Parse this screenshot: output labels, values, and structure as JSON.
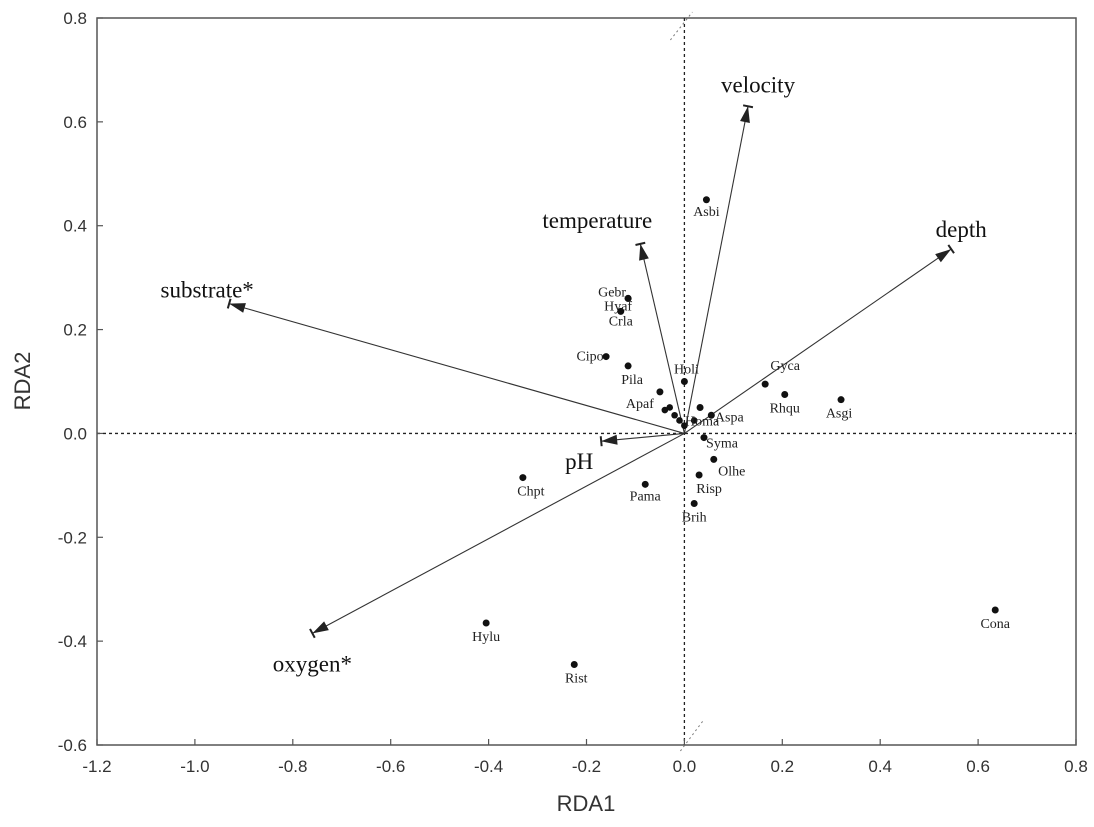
{
  "chart_data": {
    "type": "scatter",
    "title": "",
    "xlabel": "RDA1",
    "ylabel": "RDA2",
    "xlim": [
      -1.2,
      0.8
    ],
    "ylim": [
      -0.6,
      0.8
    ],
    "x_ticks": [
      "-1.2",
      "-1.0",
      "-0.8",
      "-0.6",
      "-0.4",
      "-0.2",
      "0.0",
      "0.2",
      "0.4",
      "0.6",
      "0.8"
    ],
    "y_ticks": [
      "0.8",
      "0.6",
      "0.4",
      "0.2",
      "0.0",
      "-0.2",
      "-0.4",
      "-0.6"
    ],
    "x_tick_values": [
      -1.2,
      -1.0,
      -0.8,
      -0.6,
      -0.4,
      -0.2,
      0.0,
      0.2,
      0.4,
      0.6,
      0.8
    ],
    "y_tick_values": [
      0.8,
      0.6,
      0.4,
      0.2,
      0.0,
      -0.2,
      -0.4,
      -0.6
    ],
    "grid": false,
    "legend": "none",
    "species": [
      {
        "name": "Asbi",
        "x": 0.045,
        "y": 0.45
      },
      {
        "name": "Hyaf",
        "x": -0.115,
        "y": 0.26
      },
      {
        "name": "Gebr",
        "x": -0.115,
        "y": 0.26
      },
      {
        "name": "Crla",
        "x": -0.13,
        "y": 0.235
      },
      {
        "name": "Cipo",
        "x": -0.16,
        "y": 0.148
      },
      {
        "name": "Pila",
        "x": -0.115,
        "y": 0.13
      },
      {
        "name": "Holi",
        "x": 0.0,
        "y": 0.1
      },
      {
        "name": "Apaf",
        "x": -0.05,
        "y": 0.08
      },
      {
        "name": "Homa",
        "x": 0.032,
        "y": 0.05
      },
      {
        "name": "Gyca",
        "x": 0.165,
        "y": 0.095
      },
      {
        "name": "Rhqu",
        "x": 0.205,
        "y": 0.075
      },
      {
        "name": "Asgi",
        "x": 0.32,
        "y": 0.065
      },
      {
        "name": "Aspa",
        "x": 0.055,
        "y": 0.035
      },
      {
        "name": "Syma",
        "x": 0.04,
        "y": -0.008
      },
      {
        "name": "Olhe",
        "x": 0.06,
        "y": -0.05
      },
      {
        "name": "Risp",
        "x": 0.03,
        "y": -0.08
      },
      {
        "name": "Brih",
        "x": 0.02,
        "y": -0.135
      },
      {
        "name": "Pama",
        "x": -0.08,
        "y": -0.098
      },
      {
        "name": "Chpt",
        "x": -0.33,
        "y": -0.085
      },
      {
        "name": "Hylu",
        "x": -0.405,
        "y": -0.365
      },
      {
        "name": "Rist",
        "x": -0.225,
        "y": -0.445
      },
      {
        "name": "Cona",
        "x": 0.635,
        "y": -0.34
      }
    ],
    "central_cluster": [
      {
        "x": -0.03,
        "y": 0.05
      },
      {
        "x": -0.02,
        "y": 0.035
      },
      {
        "x": -0.01,
        "y": 0.025
      },
      {
        "x": 0.0,
        "y": 0.015
      },
      {
        "x": 0.02,
        "y": 0.025
      },
      {
        "x": -0.04,
        "y": 0.045
      }
    ],
    "environmental_vectors": [
      {
        "name": "velocity",
        "x": 0.13,
        "y": 0.63
      },
      {
        "name": "temperature",
        "x": -0.09,
        "y": 0.365
      },
      {
        "name": "depth",
        "x": 0.545,
        "y": 0.355
      },
      {
        "name": "substrate*",
        "x": -0.93,
        "y": 0.25
      },
      {
        "name": "pH",
        "x": -0.17,
        "y": -0.015
      },
      {
        "name": "oxygen*",
        "x": -0.76,
        "y": -0.385
      }
    ]
  }
}
